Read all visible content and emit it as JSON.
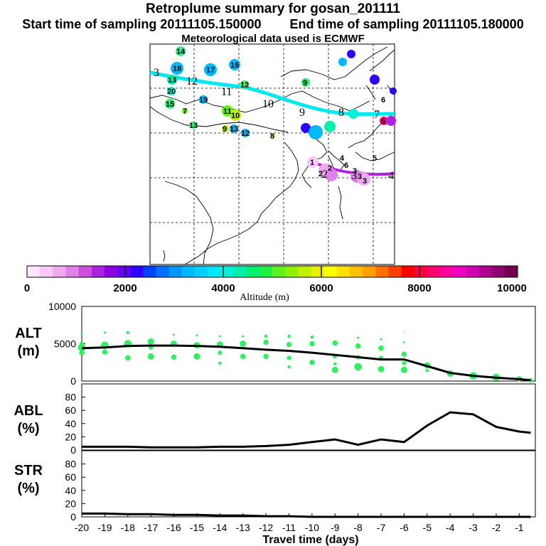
{
  "header": {
    "title": "Retroplume summary for gosan_201111",
    "start_label": "Start time of sampling 20111105.150000",
    "end_label": "End time of sampling 20111105.180000",
    "met_label": "Meteorological data used is ECMWF"
  },
  "colorbar": {
    "label": "Altitude (m)",
    "ticks": [
      "0",
      "2000",
      "4000",
      "6000",
      "8000",
      "10000"
    ],
    "colors": [
      "#ffe8ff",
      "#f8c8f8",
      "#f0a8f0",
      "#e080e8",
      "#cc50e0",
      "#b020e0",
      "#8a00e0",
      "#6000f0",
      "#3000ff",
      "#0040ff",
      "#0070ff",
      "#0098ff",
      "#00b8ff",
      "#00d0ff",
      "#00e8ff",
      "#00f0d8",
      "#00f0a8",
      "#00f070",
      "#20f040",
      "#60f020",
      "#90f000",
      "#c0f000",
      "#e8f000",
      "#ffff00",
      "#ffe000",
      "#ffc000",
      "#ffa000",
      "#ff7000",
      "#ff4000",
      "#ff0000",
      "#ff0040",
      "#ff0070",
      "#ff00a0",
      "#f000c0",
      "#d000b0",
      "#b00090",
      "#900070",
      "#700050"
    ]
  },
  "map": {
    "trajectory_upper_labels": [
      "3",
      "12",
      "11",
      "10",
      "9",
      "8",
      "7"
    ],
    "trajectory_lower_labels": [
      "2",
      "3",
      "4"
    ],
    "cluster_labels": [
      "14",
      "18",
      "16",
      "17",
      "13",
      "20",
      "12",
      "19",
      "15",
      "7",
      "11",
      "10",
      "13",
      "9",
      "13",
      "12",
      "9",
      "8",
      "6",
      "1",
      "2",
      "2",
      "3",
      "3",
      "3",
      "6",
      "4",
      "5",
      "6"
    ]
  },
  "chart_data": [
    {
      "type": "line",
      "panel": "ALT",
      "ylabel": "ALT (m)",
      "ylabel_lines": [
        "ALT",
        "(m)"
      ],
      "ylim": [
        0,
        10000
      ],
      "ytick_labels": [
        "10000",
        "5000",
        "0"
      ],
      "yticks": [
        10000,
        5000,
        0
      ],
      "x": [
        -20,
        -19,
        -18,
        -17,
        -16,
        -15,
        -14,
        -13,
        -12,
        -11,
        -10,
        -9,
        -8,
        -7,
        -6,
        -5,
        -4,
        -3,
        -2,
        -1,
        -0.5
      ],
      "series": [
        {
          "name": "median altitude",
          "values": [
            4400,
            4500,
            4700,
            4750,
            4750,
            4700,
            4600,
            4400,
            4200,
            4050,
            3800,
            3500,
            3200,
            2900,
            2900,
            2000,
            1100,
            700,
            450,
            250,
            120
          ]
        }
      ],
      "scatter": [
        {
          "x": -20,
          "y": 4500,
          "s": 7
        },
        {
          "x": -20,
          "y": 3800,
          "s": 5
        },
        {
          "x": -20,
          "y": 5000,
          "s": 4
        },
        {
          "x": -20,
          "y": 6300,
          "s": 2
        },
        {
          "x": -19,
          "y": 4800,
          "s": 7
        },
        {
          "x": -19,
          "y": 3900,
          "s": 5
        },
        {
          "x": -19,
          "y": 6500,
          "s": 2
        },
        {
          "x": -18,
          "y": 5000,
          "s": 7
        },
        {
          "x": -18,
          "y": 3100,
          "s": 5
        },
        {
          "x": -18,
          "y": 6500,
          "s": 3
        },
        {
          "x": -17,
          "y": 5300,
          "s": 6
        },
        {
          "x": -17,
          "y": 3300,
          "s": 6
        },
        {
          "x": -17,
          "y": 4500,
          "s": 4
        },
        {
          "x": -16,
          "y": 5000,
          "s": 6
        },
        {
          "x": -16,
          "y": 3200,
          "s": 5
        },
        {
          "x": -16,
          "y": 6200,
          "s": 2
        },
        {
          "x": -15,
          "y": 4800,
          "s": 6
        },
        {
          "x": -15,
          "y": 3300,
          "s": 6
        },
        {
          "x": -15,
          "y": 6100,
          "s": 2
        },
        {
          "x": -14,
          "y": 4900,
          "s": 6
        },
        {
          "x": -14,
          "y": 2400,
          "s": 3
        },
        {
          "x": -14,
          "y": 3800,
          "s": 4
        },
        {
          "x": -14,
          "y": 6000,
          "s": 2
        },
        {
          "x": -13,
          "y": 5000,
          "s": 6
        },
        {
          "x": -13,
          "y": 3300,
          "s": 5
        },
        {
          "x": -13,
          "y": 6000,
          "s": 2
        },
        {
          "x": -12,
          "y": 5200,
          "s": 5
        },
        {
          "x": -12,
          "y": 3300,
          "s": 5
        },
        {
          "x": -12,
          "y": 6000,
          "s": 3
        },
        {
          "x": -11,
          "y": 4900,
          "s": 5
        },
        {
          "x": -11,
          "y": 3100,
          "s": 4
        },
        {
          "x": -11,
          "y": 1900,
          "s": 3
        },
        {
          "x": -11,
          "y": 6000,
          "s": 3
        },
        {
          "x": -10,
          "y": 5000,
          "s": 5
        },
        {
          "x": -10,
          "y": 2500,
          "s": 5
        },
        {
          "x": -10,
          "y": 5900,
          "s": 3
        },
        {
          "x": -9,
          "y": 5100,
          "s": 5
        },
        {
          "x": -9,
          "y": 1500,
          "s": 6
        },
        {
          "x": -9,
          "y": 3300,
          "s": 4
        },
        {
          "x": -9,
          "y": 2300,
          "s": 3
        },
        {
          "x": -8,
          "y": 4700,
          "s": 5
        },
        {
          "x": -8,
          "y": 1900,
          "s": 7
        },
        {
          "x": -8,
          "y": 3200,
          "s": 4
        },
        {
          "x": -8,
          "y": 5800,
          "s": 2
        },
        {
          "x": -7,
          "y": 4400,
          "s": 5
        },
        {
          "x": -7,
          "y": 1600,
          "s": 6
        },
        {
          "x": -7,
          "y": 3100,
          "s": 4
        },
        {
          "x": -7,
          "y": 5600,
          "s": 2
        },
        {
          "x": -6,
          "y": 3600,
          "s": 5
        },
        {
          "x": -6,
          "y": 1500,
          "s": 6
        },
        {
          "x": -6,
          "y": 2400,
          "s": 4
        },
        {
          "x": -6,
          "y": 5200,
          "s": 2
        },
        {
          "x": -6,
          "y": 6600,
          "s": 1
        },
        {
          "x": -5,
          "y": 2100,
          "s": 6
        },
        {
          "x": -5,
          "y": 1900,
          "s": 3
        },
        {
          "x": -5,
          "y": 1400,
          "s": 3
        },
        {
          "x": -4,
          "y": 1000,
          "s": 6
        },
        {
          "x": -3,
          "y": 700,
          "s": 7
        },
        {
          "x": -2,
          "y": 500,
          "s": 7
        },
        {
          "x": -1,
          "y": 300,
          "s": 5
        },
        {
          "x": -0.5,
          "y": 100,
          "s": 4
        }
      ]
    },
    {
      "type": "line",
      "panel": "ABL",
      "ylabel": "ABL (%)",
      "ylabel_lines": [
        "ABL",
        "(%)"
      ],
      "ylim": [
        0,
        100
      ],
      "ytick_labels": [
        "80",
        "60",
        "40",
        "20",
        "0"
      ],
      "yticks": [
        80,
        60,
        40,
        20,
        0
      ],
      "x": [
        -20,
        -19,
        -18,
        -17,
        -16,
        -15,
        -14,
        -13,
        -12,
        -11,
        -10,
        -9,
        -8,
        -7,
        -6,
        -5,
        -4,
        -3,
        -2,
        -1,
        -0.5
      ],
      "series": [
        {
          "name": "ABL fraction",
          "values": [
            5,
            5,
            5,
            4,
            4,
            4,
            5,
            5,
            6,
            8,
            12,
            16,
            8,
            16,
            12,
            37,
            57,
            54,
            35,
            28,
            26
          ]
        }
      ]
    },
    {
      "type": "line",
      "panel": "STR",
      "ylabel": "STR (%)",
      "ylabel_lines": [
        "STR",
        "(%)"
      ],
      "ylim": [
        0,
        100
      ],
      "ytick_labels": [
        "80",
        "60",
        "40",
        "20",
        "0"
      ],
      "yticks": [
        80,
        60,
        40,
        20,
        0
      ],
      "x": [
        -20,
        -19,
        -18,
        -17,
        -16,
        -15,
        -14,
        -13,
        -12,
        -11,
        -10,
        -9,
        -8,
        -7,
        -6,
        -5,
        -4,
        -3,
        -2,
        -1,
        -0.5
      ],
      "series": [
        {
          "name": "STR fraction",
          "values": [
            5,
            5,
            4,
            4,
            3,
            3,
            2,
            2,
            1,
            1,
            0,
            0,
            0,
            0,
            0,
            0,
            0,
            0,
            0,
            0,
            0
          ]
        }
      ],
      "xlabel": "Travel time (days)",
      "xtick_labels": [
        "-20",
        "-19",
        "-18",
        "-17",
        "-16",
        "-15",
        "-14",
        "-13",
        "-12",
        "-11",
        "-10",
        "-9",
        "-8",
        "-7",
        "-6",
        "-5",
        "-4",
        "-3",
        "-2",
        "-1"
      ],
      "xticks": [
        -20,
        -19,
        -18,
        -17,
        -16,
        -15,
        -14,
        -13,
        -12,
        -11,
        -10,
        -9,
        -8,
        -7,
        -6,
        -5,
        -4,
        -3,
        -2,
        -1
      ]
    }
  ]
}
